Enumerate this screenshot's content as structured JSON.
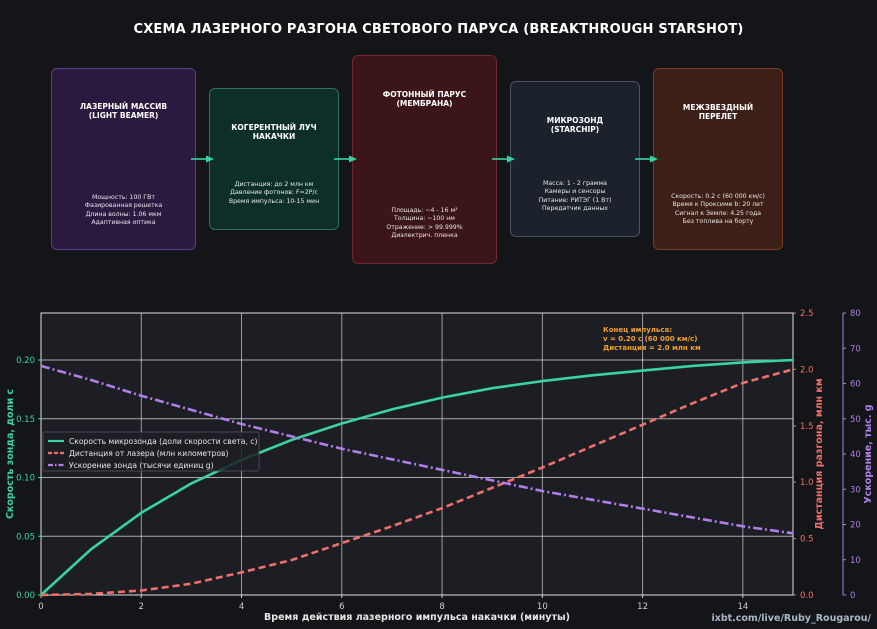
{
  "title": "СХЕМА ЛАЗЕРНОГО РАЗГОНА СВЕТОВОГО ПАРУСА (BREAKTHROUGH STARSHOT)",
  "flow": [
    {
      "title": "ЛАЗЕРНЫЙ МАССИВ\n(LIGHT BEAMER)",
      "lines": [
        "Мощность: 100 ГВт",
        "Фазированная решетка",
        "Длина волны: 1.06 мкм",
        "Адаптивная оптика"
      ]
    },
    {
      "title": "КОГЕРЕНТНЫЙ ЛУЧ\nНАКАЧКИ",
      "lines": [
        "Дистанция: до 2 млн км",
        "Давление фотонов: F=2P/c",
        "Время импульса: 10-15 мин"
      ]
    },
    {
      "title": "ФОТОННЫЙ ПАРУС\n(МЕМБРАНА)",
      "lines": [
        "Площадь: ~4 - 16 м²",
        "Толщина: ~100 нм",
        "Отражение: > 99.999%",
        "Диэлектрич. пленка"
      ]
    },
    {
      "title": "МИКРОЗОНД\n(STARCHIP)",
      "lines": [
        "Масса: 1 - 2 грамма",
        "Камеры и сенсоры",
        "Питание: РИТЭГ (1 Вт)",
        "Передатчик данных"
      ]
    },
    {
      "title": "МЕЖЗВЕЗДНЫЙ\nПЕРЕЛЕТ",
      "lines": [
        "Скорость: 0.2 c (60 000 км/с)",
        "Время к Проксиме b: 20 лет",
        "Сигнал к Земле: 4.25 года",
        "Без топлива на борту"
      ]
    }
  ],
  "colors": {
    "background": "#141518",
    "plot_bg": "#1c1e24",
    "arrow": "#3ad29f",
    "velocity": "#3ad29f",
    "distance": "#ef6f6c",
    "acceleration": "#b07ee8",
    "annotation": "#f0a030"
  },
  "watermark": "ixbt.com/live/Ruby_Rougarou/",
  "chart_data": {
    "type": "line",
    "xlabel": "Время действия лазерного импульса накачки (минуты)",
    "xlim": [
      0,
      15
    ],
    "x_ticks": [
      0,
      2,
      4,
      6,
      8,
      10,
      12,
      14
    ],
    "grid": true,
    "legend_position": "center-left",
    "axes": {
      "left": {
        "label": "Скорость зонда, доли с",
        "ylim": [
          0,
          0.24
        ],
        "ticks": [
          0.0,
          0.05,
          0.1,
          0.15,
          0.2
        ],
        "color": "#3ad29f"
      },
      "right1": {
        "label": "Дистанция разгона, млн км",
        "ylim": [
          0,
          2.5
        ],
        "ticks": [
          0.0,
          0.5,
          1.0,
          1.5,
          2.0,
          2.5
        ],
        "color": "#ef6f6c"
      },
      "right2": {
        "label": "Ускорение, тыс. g",
        "ylim": [
          0,
          80
        ],
        "ticks": [
          0,
          10,
          20,
          30,
          40,
          50,
          60,
          70,
          80
        ],
        "color": "#b07ee8"
      }
    },
    "x": [
      0,
      1,
      2,
      3,
      4,
      5,
      6,
      7,
      8,
      9,
      10,
      11,
      12,
      13,
      14,
      15
    ],
    "series": [
      {
        "name": "Скорость микрозонда (доли скорости света, c)",
        "axis": "left",
        "style": "solid",
        "values": [
          0.0,
          0.039,
          0.07,
          0.095,
          0.115,
          0.132,
          0.146,
          0.158,
          0.168,
          0.176,
          0.182,
          0.187,
          0.191,
          0.195,
          0.198,
          0.2
        ]
      },
      {
        "name": "Дистанция от лазера (млн километров)",
        "axis": "right1",
        "style": "dashed",
        "values": [
          0.0,
          0.01,
          0.04,
          0.1,
          0.2,
          0.31,
          0.46,
          0.61,
          0.77,
          0.95,
          1.13,
          1.32,
          1.51,
          1.7,
          1.88,
          2.0
        ]
      },
      {
        "name": "Ускорение зонда (тысячи единиц g)",
        "axis": "right2",
        "style": "dashdot",
        "values": [
          65.0,
          61.0,
          56.5,
          52.5,
          48.5,
          45.0,
          41.5,
          38.5,
          35.5,
          32.5,
          29.5,
          27.0,
          24.5,
          22.0,
          19.5,
          17.5
        ]
      }
    ],
    "annotation": {
      "lines": [
        "Конец импульса:",
        "v = 0.20 c (60 000 км/с)",
        "Дистанция = 2.0 млн км"
      ]
    }
  }
}
